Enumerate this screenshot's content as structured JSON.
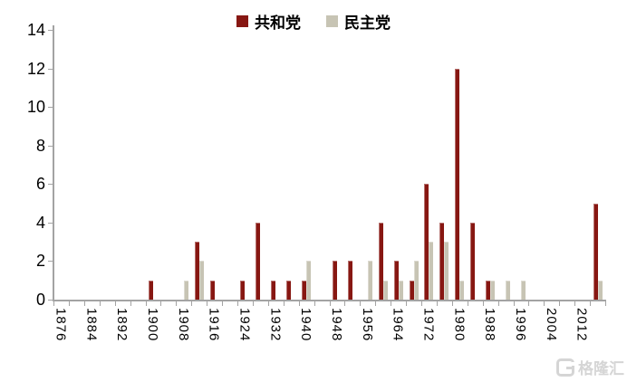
{
  "legend": {
    "items": [
      {
        "label": "共和党",
        "color": "#871712"
      },
      {
        "label": "民主党",
        "color": "#C7C4B4"
      }
    ]
  },
  "watermark": {
    "text": "格隆汇"
  },
  "chart_data": {
    "type": "bar",
    "title": "",
    "xlabel": "",
    "ylabel": "",
    "categories": [
      1876,
      1880,
      1884,
      1888,
      1892,
      1896,
      1900,
      1904,
      1908,
      1912,
      1916,
      1920,
      1924,
      1928,
      1932,
      1936,
      1940,
      1944,
      1948,
      1952,
      1956,
      1960,
      1964,
      1968,
      1972,
      1976,
      1980,
      1984,
      1988,
      1992,
      1996,
      2000,
      2004,
      2008,
      2012,
      2016
    ],
    "x_axis_labels_shown": [
      "1876",
      "1884",
      "1892",
      "1900",
      "1908",
      "1916",
      "1924",
      "1932",
      "1940",
      "1948",
      "1956",
      "1964",
      "1972",
      "1980",
      "1988",
      "1996",
      "2004",
      "2012"
    ],
    "x_label_rotation_deg": 90,
    "series": [
      {
        "name": "共和党",
        "color": "#871712",
        "values": [
          0,
          0,
          0,
          0,
          0,
          0,
          1,
          0,
          0,
          3,
          1,
          0,
          1,
          4,
          1,
          1,
          1,
          0,
          2,
          2,
          0,
          4,
          2,
          1,
          6,
          4,
          12,
          4,
          1,
          0,
          0,
          0,
          0,
          0,
          0,
          5
        ]
      },
      {
        "name": "民主党",
        "color": "#C7C4B4",
        "values": [
          0,
          0,
          0,
          0,
          0,
          0,
          0,
          0,
          1,
          2,
          0,
          0,
          0,
          0,
          0,
          0,
          2,
          0,
          0,
          0,
          2,
          1,
          1,
          2,
          3,
          3,
          1,
          0,
          1,
          1,
          1,
          0,
          0,
          0,
          0,
          1
        ]
      }
    ],
    "ylim": [
      0,
      14
    ],
    "y_ticks": [
      0,
      2,
      4,
      6,
      8,
      10,
      12,
      14
    ],
    "grid": false,
    "legend_position": "top-center",
    "axis_color": "#a3a3a3",
    "text_color": "#000000"
  }
}
